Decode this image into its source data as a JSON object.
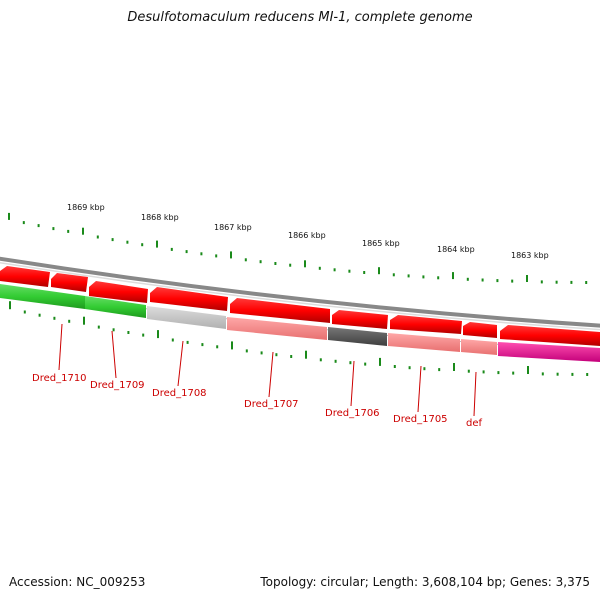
{
  "title": "Desulfotomaculum reducens MI-1, complete genome",
  "footer": {
    "accession": "Accession: NC_009253",
    "summary": "Topology: circular; Length: 3,608,104 bp; Genes: 3,375"
  },
  "kbp_labels": [
    "1869 kbp",
    "1868 kbp",
    "1867 kbp",
    "1866 kbp",
    "1865 kbp",
    "1864 kbp",
    "1863 kbp"
  ],
  "gene_labels": [
    "Dred_1710",
    "Dred_1709",
    "Dred_1708",
    "Dred_1707",
    "Dred_1706",
    "Dred_1705",
    "def"
  ],
  "colors": {
    "cds": "#ff0000",
    "green": "#33cc33",
    "grey": "#c4c4c4",
    "pink": "#ff8a8a",
    "dark": "#555555",
    "magenta": "#e8158c",
    "tick": "#1a8a1a",
    "label": "#cc0000"
  }
}
